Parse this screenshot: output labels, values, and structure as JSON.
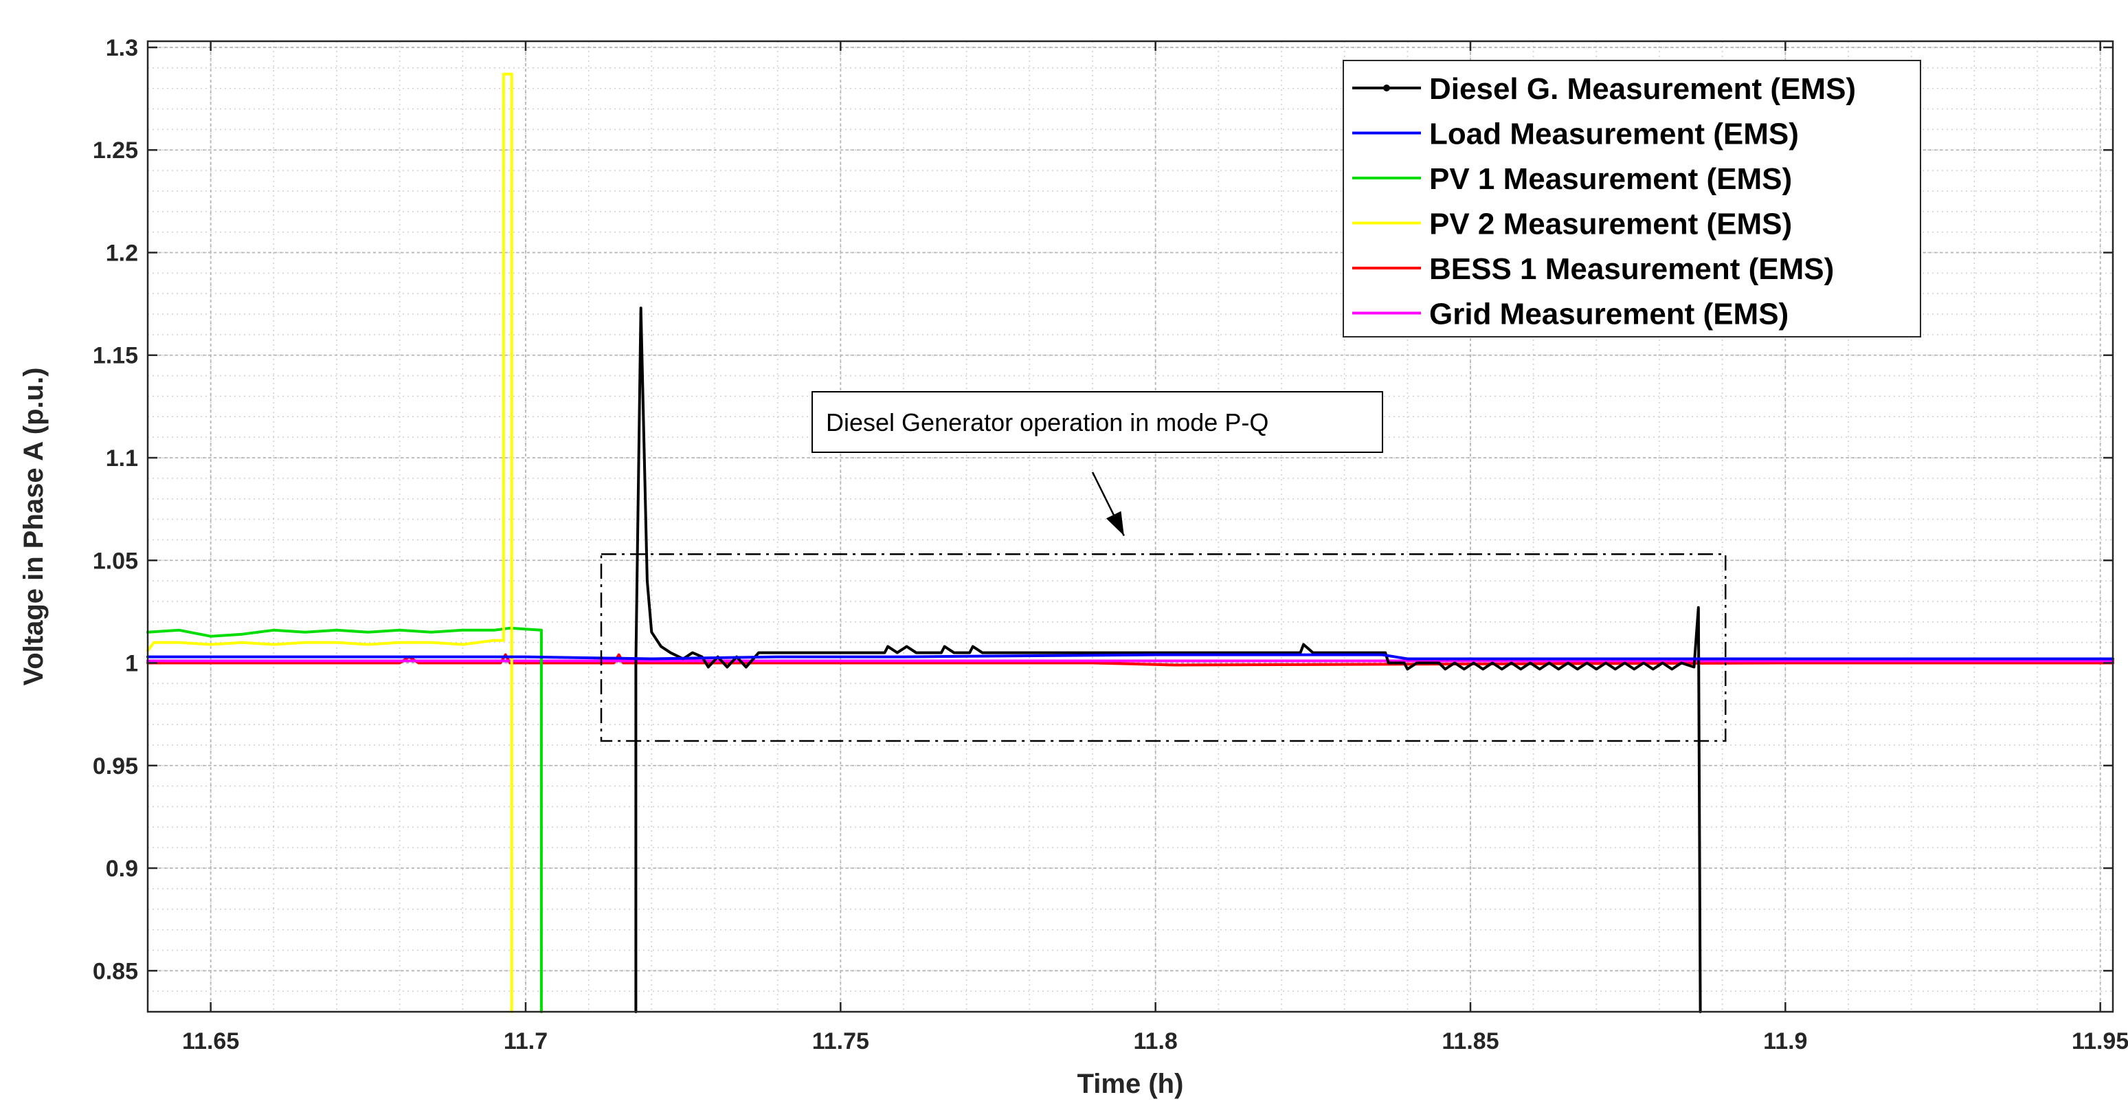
{
  "chart_data": {
    "type": "line",
    "title": "",
    "xlabel": "Time (h)",
    "ylabel": "Voltage in Phase A (p.u.)",
    "xlim": [
      11.64,
      11.952
    ],
    "ylim": [
      0.83,
      1.303
    ],
    "grid": true,
    "minor_grid": true,
    "legend_position": "top-right",
    "xticks": [
      11.65,
      11.7,
      11.75,
      11.8,
      11.85,
      11.9,
      11.95
    ],
    "xtick_labels": [
      "11.65",
      "11.7",
      "11.75",
      "11.8",
      "11.85",
      "11.9",
      "11.95"
    ],
    "yticks": [
      0.85,
      0.9,
      0.95,
      1,
      1.05,
      1.1,
      1.15,
      1.2,
      1.25,
      1.3
    ],
    "ytick_labels": [
      "0.85",
      "0.9",
      "0.95",
      "1",
      "1.05",
      "1.1",
      "1.15",
      "1.2",
      "1.25",
      "1.3"
    ],
    "series": [
      {
        "name": "Diesel G. Measurement (EMS)",
        "color": "#000000",
        "marker": "dot",
        "points": [
          [
            11.7175,
            0.83
          ],
          [
            11.7175,
            1.0
          ],
          [
            11.7183,
            1.173
          ],
          [
            11.7193,
            1.04
          ],
          [
            11.72,
            1.015
          ],
          [
            11.7215,
            1.008
          ],
          [
            11.723,
            1.005
          ],
          [
            11.725,
            1.002
          ],
          [
            11.7265,
            1.005
          ],
          [
            11.728,
            1.003
          ],
          [
            11.729,
            0.998
          ],
          [
            11.7305,
            1.003
          ],
          [
            11.732,
            0.998
          ],
          [
            11.7335,
            1.003
          ],
          [
            11.735,
            0.998
          ],
          [
            11.737,
            1.005
          ],
          [
            11.745,
            1.005
          ],
          [
            11.757,
            1.005
          ],
          [
            11.7575,
            1.008
          ],
          [
            11.759,
            1.005
          ],
          [
            11.7605,
            1.008
          ],
          [
            11.762,
            1.005
          ],
          [
            11.766,
            1.005
          ],
          [
            11.7665,
            1.008
          ],
          [
            11.768,
            1.005
          ],
          [
            11.7705,
            1.005
          ],
          [
            11.771,
            1.008
          ],
          [
            11.7725,
            1.005
          ],
          [
            11.79,
            1.005
          ],
          [
            11.8,
            1.005
          ],
          [
            11.823,
            1.005
          ],
          [
            11.8235,
            1.009
          ],
          [
            11.825,
            1.005
          ],
          [
            11.8365,
            1.005
          ],
          [
            11.837,
            1.0
          ],
          [
            11.8395,
            1.0
          ],
          [
            11.84,
            0.997
          ],
          [
            11.8415,
            1.0
          ],
          [
            11.845,
            1.0
          ],
          [
            11.846,
            0.997
          ],
          [
            11.8475,
            1.0
          ],
          [
            11.849,
            0.997
          ],
          [
            11.8505,
            1.0
          ],
          [
            11.852,
            0.997
          ],
          [
            11.8535,
            1.0
          ],
          [
            11.855,
            0.997
          ],
          [
            11.8565,
            1.0
          ],
          [
            11.858,
            0.997
          ],
          [
            11.8595,
            1.0
          ],
          [
            11.861,
            0.997
          ],
          [
            11.8625,
            1.0
          ],
          [
            11.864,
            0.997
          ],
          [
            11.8655,
            1.0
          ],
          [
            11.867,
            0.997
          ],
          [
            11.8685,
            1.0
          ],
          [
            11.87,
            0.997
          ],
          [
            11.8715,
            1.0
          ],
          [
            11.873,
            0.997
          ],
          [
            11.8745,
            1.0
          ],
          [
            11.876,
            0.997
          ],
          [
            11.8775,
            1.0
          ],
          [
            11.879,
            0.997
          ],
          [
            11.8805,
            1.0
          ],
          [
            11.882,
            0.997
          ],
          [
            11.8835,
            1.0
          ],
          [
            11.8855,
            0.998
          ],
          [
            11.8862,
            1.027
          ],
          [
            11.8865,
            0.83
          ]
        ]
      },
      {
        "name": "Load Measurement (EMS)",
        "color": "#0000ff",
        "points": [
          [
            11.64,
            1.003
          ],
          [
            11.66,
            1.003
          ],
          [
            11.68,
            1.003
          ],
          [
            11.7,
            1.003
          ],
          [
            11.72,
            1.002
          ],
          [
            11.74,
            1.003
          ],
          [
            11.76,
            1.003
          ],
          [
            11.8,
            1.004
          ],
          [
            11.836,
            1.004
          ],
          [
            11.84,
            1.002
          ],
          [
            11.86,
            1.002
          ],
          [
            11.9,
            1.002
          ],
          [
            11.952,
            1.002
          ]
        ]
      },
      {
        "name": "PV 1 Measurement (EMS)",
        "color": "#00dd00",
        "points": [
          [
            11.64,
            1.015
          ],
          [
            11.645,
            1.016
          ],
          [
            11.65,
            1.013
          ],
          [
            11.655,
            1.014
          ],
          [
            11.66,
            1.016
          ],
          [
            11.665,
            1.015
          ],
          [
            11.67,
            1.016
          ],
          [
            11.675,
            1.015
          ],
          [
            11.68,
            1.016
          ],
          [
            11.685,
            1.015
          ],
          [
            11.69,
            1.016
          ],
          [
            11.695,
            1.016
          ],
          [
            11.6975,
            1.017
          ],
          [
            11.7025,
            1.016
          ],
          [
            11.7025,
            0.83
          ]
        ]
      },
      {
        "name": "PV 2 Measurement (EMS)",
        "color": "#ffff00",
        "points": [
          [
            11.64,
            1.006
          ],
          [
            11.641,
            1.01
          ],
          [
            11.645,
            1.01
          ],
          [
            11.65,
            1.009
          ],
          [
            11.655,
            1.01
          ],
          [
            11.66,
            1.009
          ],
          [
            11.665,
            1.01
          ],
          [
            11.67,
            1.01
          ],
          [
            11.675,
            1.009
          ],
          [
            11.68,
            1.01
          ],
          [
            11.685,
            1.01
          ],
          [
            11.69,
            1.009
          ],
          [
            11.695,
            1.011
          ],
          [
            11.6965,
            1.011
          ],
          [
            11.6965,
            1.287
          ],
          [
            11.6978,
            1.287
          ],
          [
            11.6978,
            0.83
          ]
        ]
      },
      {
        "name": "BESS 1 Measurement (EMS)",
        "color": "#ff0000",
        "points": [
          [
            11.64,
            1.0
          ],
          [
            11.66,
            1.0
          ],
          [
            11.68,
            1.0
          ],
          [
            11.6815,
            1.003
          ],
          [
            11.683,
            1.0
          ],
          [
            11.696,
            1.0
          ],
          [
            11.6968,
            1.004
          ],
          [
            11.6975,
            1.0
          ],
          [
            11.714,
            1.0
          ],
          [
            11.7148,
            1.004
          ],
          [
            11.7155,
            1.0
          ],
          [
            11.79,
            1.0
          ],
          [
            11.803,
            0.999
          ],
          [
            11.9,
            1.0
          ],
          [
            11.952,
            1.0
          ]
        ]
      },
      {
        "name": "Grid Measurement (EMS)",
        "color": "#ff00ff",
        "points": [
          [
            11.64,
            1.001
          ],
          [
            11.952,
            1.001
          ]
        ]
      }
    ],
    "annotation": {
      "text": "Diesel Generator operation in mode P-Q",
      "target_box": {
        "x": [
          11.712,
          11.8905
        ],
        "y": [
          0.962,
          1.053
        ]
      },
      "arrow_from": [
        11.79,
        1.093
      ],
      "arrow_to": [
        11.795,
        1.062
      ]
    }
  }
}
